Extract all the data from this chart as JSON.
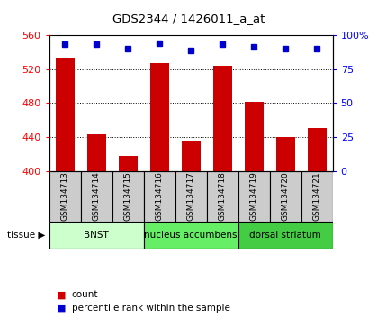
{
  "title": "GDS2344 / 1426011_a_at",
  "samples": [
    "GSM134713",
    "GSM134714",
    "GSM134715",
    "GSM134716",
    "GSM134717",
    "GSM134718",
    "GSM134719",
    "GSM134720",
    "GSM134721"
  ],
  "counts": [
    533,
    443,
    418,
    527,
    436,
    524,
    481,
    440,
    450
  ],
  "percentiles": [
    93,
    93,
    90,
    94,
    89,
    93,
    91,
    90,
    90
  ],
  "ylim_left": [
    400,
    560
  ],
  "yticks_left": [
    400,
    440,
    480,
    520,
    560
  ],
  "ylim_right": [
    0,
    100
  ],
  "yticks_right": [
    0,
    25,
    50,
    75,
    100
  ],
  "bar_color": "#cc0000",
  "dot_color": "#0000cc",
  "bar_width": 0.6,
  "tissue_groups": [
    {
      "label": "BNST",
      "start": 0,
      "end": 2,
      "color": "#ccffcc"
    },
    {
      "label": "nucleus accumbens",
      "start": 3,
      "end": 5,
      "color": "#66ee66"
    },
    {
      "label": "dorsal striatum",
      "start": 6,
      "end": 8,
      "color": "#44cc44"
    }
  ],
  "tissue_label": "tissue",
  "legend_count_label": "count",
  "legend_pct_label": "percentile rank within the sample",
  "background_color": "#ffffff",
  "label_cell_color": "#cccccc",
  "label_cell_edgecolor": "#888888"
}
